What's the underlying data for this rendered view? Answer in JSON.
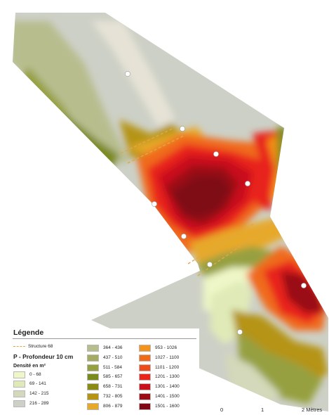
{
  "map": {
    "colors": {
      "ramp": [
        "#eef7c7",
        "#dfeab8",
        "#d3d9ba",
        "#cdd0c6",
        "#b8bd8e",
        "#a6ab64",
        "#96a040",
        "#83921f",
        "#7a8a1b",
        "#8a8a15",
        "#b59413",
        "#e7a92a",
        "#f59219",
        "#f06a1a",
        "#ef4a1a",
        "#e8241b",
        "#c9111c",
        "#9a0d17",
        "#7f0813"
      ],
      "structure": "#e2a64a",
      "point": "#ffffff"
    }
  },
  "legend": {
    "title": "Légende",
    "structure_label": "Structure 68",
    "subtitle": "P - Profondeur 10 cm",
    "unit_label": "Densité en m²",
    "classes": [
      {
        "label": "0 - 68",
        "color": "#eef7c7"
      },
      {
        "label": "69 - 141",
        "color": "#dfeab8"
      },
      {
        "label": "142 - 215",
        "color": "#d3d9ba"
      },
      {
        "label": "216 - 289",
        "color": "#cdd0c6"
      },
      {
        "label": "364 - 436",
        "color": "#b8bd8e"
      },
      {
        "label": "437 - 510",
        "color": "#a6ab64"
      },
      {
        "label": "511 - 584",
        "color": "#96a040"
      },
      {
        "label": "585 - 657",
        "color": "#7a8a1b"
      },
      {
        "label": "658 - 731",
        "color": "#8a8a15"
      },
      {
        "label": "732 - 805",
        "color": "#b59413"
      },
      {
        "label": "806 - 879",
        "color": "#e7a92a"
      },
      {
        "label": "953 - 1026",
        "color": "#f59219"
      },
      {
        "label": "1027 - 1100",
        "color": "#f06a1a"
      },
      {
        "label": "1101 - 1200",
        "color": "#ef4a1a"
      },
      {
        "label": "1201 - 1300",
        "color": "#e8241b"
      },
      {
        "label": "1301 - 1400",
        "color": "#c9111c"
      },
      {
        "label": "1401 - 1500",
        "color": "#9a0d17"
      },
      {
        "label": "1501 - 1600",
        "color": "#7f0813"
      }
    ]
  },
  "scale": {
    "ticks": [
      "0",
      "1",
      "2 Mètres"
    ]
  }
}
